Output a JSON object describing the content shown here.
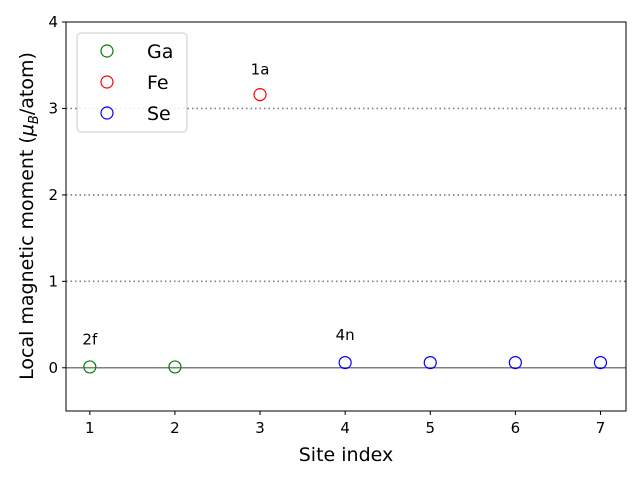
{
  "chart_data": {
    "type": "scatter",
    "xlabel": "Site index",
    "ylabel_parts": {
      "pre": "Local magnetic moment (",
      "mu": "μ",
      "sub": "B",
      "post": "/atom)"
    },
    "xlim": [
      0.72,
      7.3
    ],
    "ylim": [
      -0.5,
      4.0
    ],
    "xticks": [
      1,
      2,
      3,
      4,
      5,
      6,
      7
    ],
    "yticks": [
      0,
      1,
      2,
      3,
      4
    ],
    "grid": {
      "horizontal_dotted_at": [
        1,
        2,
        3
      ],
      "solid_at": [
        0
      ]
    },
    "legend_position": "top-left",
    "series": [
      {
        "name": "Ga",
        "color": "#008000",
        "x": [
          1,
          2
        ],
        "y": [
          0.01,
          0.01
        ]
      },
      {
        "name": "Fe",
        "color": "#ff0000",
        "x": [
          3
        ],
        "y": [
          3.16
        ]
      },
      {
        "name": "Se",
        "color": "#0000ff",
        "x": [
          4,
          5,
          6,
          7
        ],
        "y": [
          0.06,
          0.06,
          0.06,
          0.06
        ]
      }
    ],
    "annotations": [
      {
        "text": "2f",
        "x": 1,
        "y": 0.27
      },
      {
        "text": "1a",
        "x": 3,
        "y": 3.39
      },
      {
        "text": "4n",
        "x": 4,
        "y": 0.32
      }
    ]
  }
}
